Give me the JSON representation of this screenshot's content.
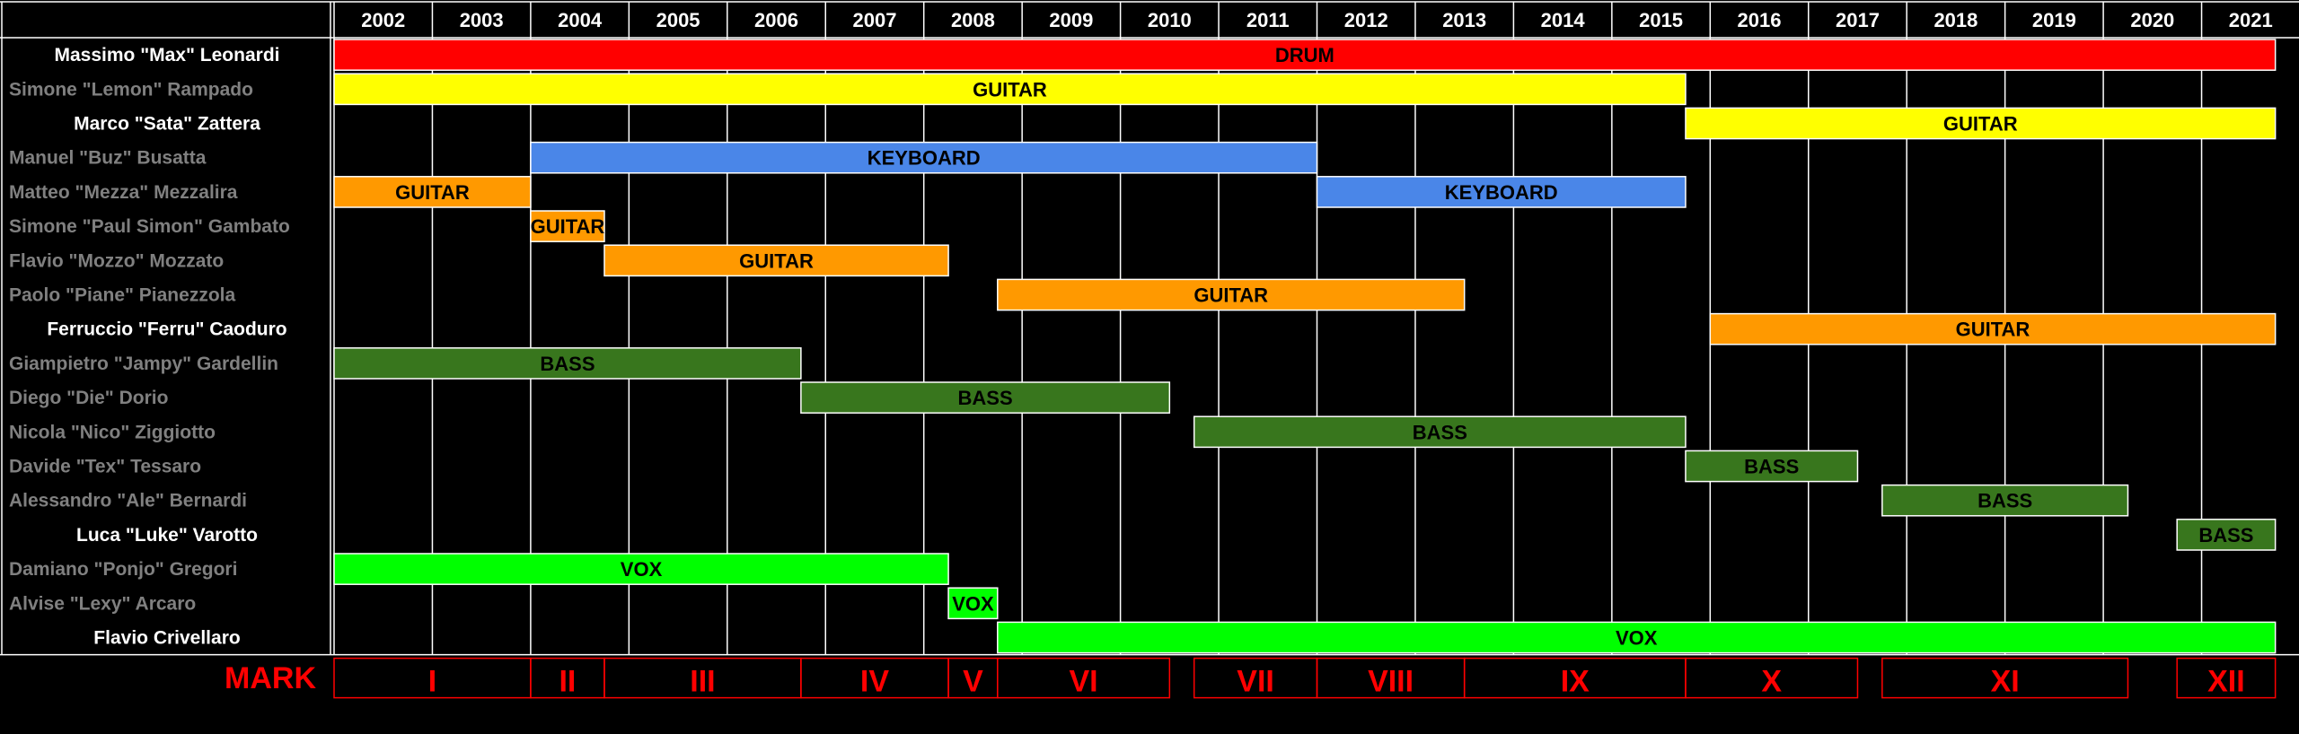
{
  "chart_data": {
    "type": "timeline",
    "title": "",
    "years": [
      "2002",
      "2003",
      "2004",
      "2005",
      "2006",
      "2007",
      "2008",
      "2009",
      "2010",
      "2011",
      "2012",
      "2013",
      "2014",
      "2015",
      "2016",
      "2017",
      "2018",
      "2019",
      "2020",
      "2021"
    ],
    "members": [
      {
        "name": "Massimo \"Max\"  Leonardi",
        "current": true
      },
      {
        "name": "Simone \"Lemon\" Rampado",
        "current": false
      },
      {
        "name": "Marco \"Sata\" Zattera",
        "current": true
      },
      {
        "name": "Manuel \"Buz\" Busatta",
        "current": false
      },
      {
        "name": "Matteo \"Mezza\" Mezzalira",
        "current": false
      },
      {
        "name": "Simone \"Paul Simon\" Gambato",
        "current": false
      },
      {
        "name": "Flavio \"Mozzo\" Mozzato",
        "current": false
      },
      {
        "name": "Paolo \"Piane\" Pianezzola",
        "current": false
      },
      {
        "name": "Ferruccio \"Ferru\" Caoduro",
        "current": true
      },
      {
        "name": "Giampietro \"Jampy\" Gardellin",
        "current": false
      },
      {
        "name": "Diego \"Die\" Dorio",
        "current": false
      },
      {
        "name": "Nicola \"Nico\" Ziggiotto",
        "current": false
      },
      {
        "name": "Davide \"Tex\" Tessaro",
        "current": false
      },
      {
        "name": "Alessandro \"Ale\" Bernardi",
        "current": false
      },
      {
        "name": "Luca \"Luke\" Varotto",
        "current": true
      },
      {
        "name": "Damiano \"Ponjo\" Gregori",
        "current": false
      },
      {
        "name": "Alvise \"Lexy\" Arcaro",
        "current": false
      },
      {
        "name": "Flavio Crivellaro",
        "current": true
      }
    ],
    "bars": [
      {
        "row": 0,
        "start": 2002.0,
        "end": 2021.75,
        "label": "DRUM",
        "instrument": "drum"
      },
      {
        "row": 1,
        "start": 2002.0,
        "end": 2015.75,
        "label": "GUITAR",
        "instrument": "guitar1"
      },
      {
        "row": 2,
        "start": 2015.75,
        "end": 2021.75,
        "label": "GUITAR",
        "instrument": "guitar1"
      },
      {
        "row": 3,
        "start": 2004.0,
        "end": 2012.0,
        "label": "KEYBOARD",
        "instrument": "keyboard"
      },
      {
        "row": 4,
        "start": 2002.0,
        "end": 2004.0,
        "label": "GUITAR",
        "instrument": "guitar2"
      },
      {
        "row": 4,
        "start": 2012.0,
        "end": 2015.75,
        "label": "KEYBOARD",
        "instrument": "keyboard"
      },
      {
        "row": 5,
        "start": 2004.0,
        "end": 2004.75,
        "label": "GUITAR",
        "instrument": "guitar2",
        "small": true
      },
      {
        "row": 6,
        "start": 2004.75,
        "end": 2008.25,
        "label": "GUITAR",
        "instrument": "guitar2"
      },
      {
        "row": 7,
        "start": 2008.75,
        "end": 2013.5,
        "label": "GUITAR",
        "instrument": "guitar2"
      },
      {
        "row": 8,
        "start": 2016.0,
        "end": 2021.75,
        "label": "GUITAR",
        "instrument": "guitar2"
      },
      {
        "row": 9,
        "start": 2002.0,
        "end": 2006.75,
        "label": "BASS",
        "instrument": "bass"
      },
      {
        "row": 10,
        "start": 2006.75,
        "end": 2010.5,
        "label": "BASS",
        "instrument": "bass"
      },
      {
        "row": 11,
        "start": 2010.75,
        "end": 2015.75,
        "label": "BASS",
        "instrument": "bass"
      },
      {
        "row": 12,
        "start": 2015.75,
        "end": 2017.5,
        "label": "BASS",
        "instrument": "bass"
      },
      {
        "row": 13,
        "start": 2017.75,
        "end": 2020.25,
        "label": "BASS",
        "instrument": "bass"
      },
      {
        "row": 14,
        "start": 2020.75,
        "end": 2021.75,
        "label": "BASS",
        "instrument": "bass"
      },
      {
        "row": 15,
        "start": 2002.0,
        "end": 2008.25,
        "label": "VOX",
        "instrument": "vox"
      },
      {
        "row": 16,
        "start": 2008.25,
        "end": 2008.75,
        "label": "VOX",
        "instrument": "vox",
        "small": true
      },
      {
        "row": 17,
        "start": 2008.75,
        "end": 2021.75,
        "label": "VOX",
        "instrument": "vox"
      }
    ],
    "marks_label": "MARK",
    "marks": [
      {
        "label": "I",
        "start": 2002.0,
        "end": 2004.0
      },
      {
        "label": "II",
        "start": 2004.0,
        "end": 2004.75
      },
      {
        "label": "III",
        "start": 2004.75,
        "end": 2006.75
      },
      {
        "label": "IV",
        "start": 2006.75,
        "end": 2008.25
      },
      {
        "label": "V",
        "start": 2008.25,
        "end": 2008.75
      },
      {
        "label": "VI",
        "start": 2008.75,
        "end": 2010.5
      },
      {
        "label": "VII",
        "start": 2010.75,
        "end": 2012.0
      },
      {
        "label": "VIII",
        "start": 2012.0,
        "end": 2013.5
      },
      {
        "label": "IX",
        "start": 2013.5,
        "end": 2015.75
      },
      {
        "label": "X",
        "start": 2015.75,
        "end": 2017.5
      },
      {
        "label": "XI",
        "start": 2017.75,
        "end": 2020.25
      },
      {
        "label": "XII",
        "start": 2020.75,
        "end": 2021.75
      }
    ],
    "colors": {
      "drum": "#ff0000",
      "guitar1": "#ffff00",
      "guitar2": "#ff9900",
      "keyboard": "#4a86e8",
      "bass": "#38761d",
      "vox": "#00ff00",
      "mark": "#ff0000",
      "current_member": "#ffffff",
      "former_member": "#808080"
    }
  }
}
